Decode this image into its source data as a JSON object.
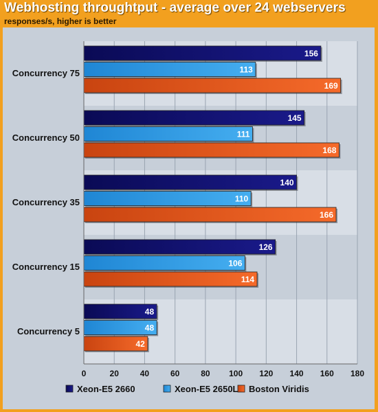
{
  "chart_data": {
    "type": "bar",
    "orientation": "horizontal",
    "title": "Webhosting throughtput - average over 24 webservers",
    "subtitle": "responses/s, higher is better",
    "categories": [
      "Concurrency 75",
      "Concurrency 50",
      "Concurrency 35",
      "Concurrency 15",
      "Concurrency 5"
    ],
    "series": [
      {
        "name": "Xeon-E5 2660",
        "values": [
          156,
          145,
          140,
          126,
          48
        ],
        "color": "#10106e"
      },
      {
        "name": "Xeon-E5 2650L",
        "values": [
          113,
          111,
          110,
          106,
          48
        ],
        "color": "#2f9be6"
      },
      {
        "name": "Boston Viridis",
        "values": [
          169,
          168,
          166,
          114,
          42
        ],
        "color": "#e8581c"
      }
    ],
    "xlim": [
      0,
      180
    ],
    "xticks": [
      0,
      20,
      40,
      60,
      80,
      100,
      120,
      140,
      160,
      180
    ],
    "legend_position": "bottom"
  },
  "colors": {
    "background": "#f2a01f",
    "plot_background": "#c7cfd9",
    "band_light": "#d8dee6",
    "band_dark": "#c7cfd9"
  }
}
